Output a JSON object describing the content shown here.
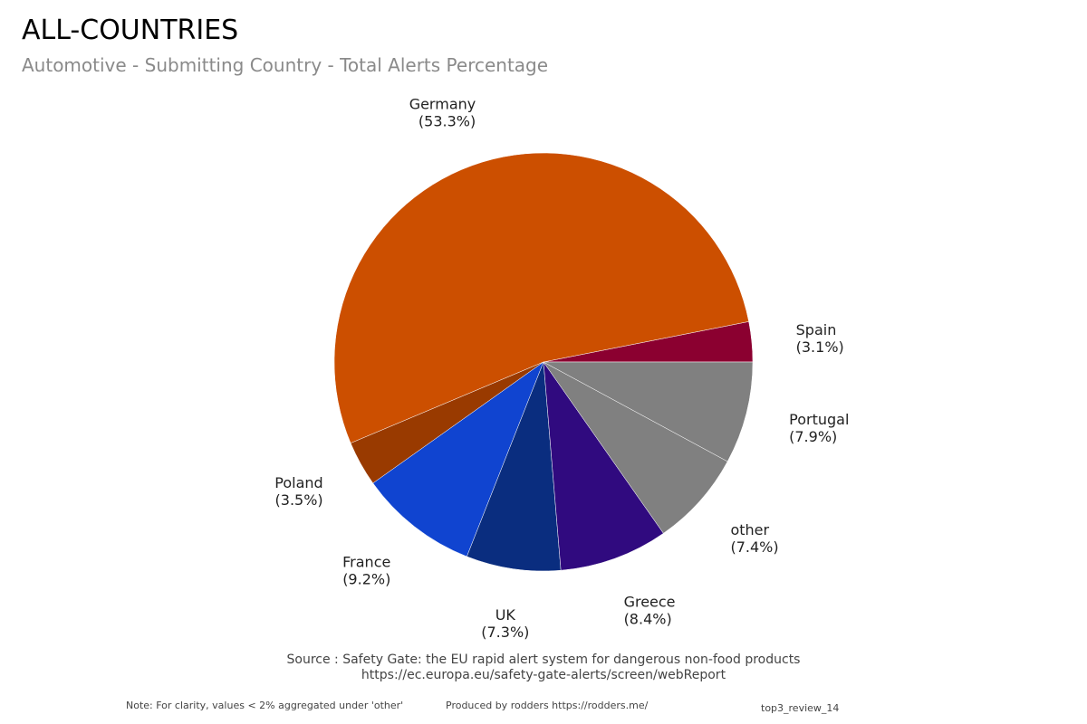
{
  "header": {
    "title": "ALL-COUNTRIES",
    "subtitle": "Automotive - Submitting Country - Total Alerts Percentage"
  },
  "chart_data": {
    "type": "pie",
    "title": "ALL-COUNTRIES",
    "subtitle": "Automotive - Submitting Country - Total Alerts Percentage",
    "unit": "%",
    "slices": [
      {
        "label": "Spain",
        "value": 3.1,
        "display": "(3.1%)",
        "color": "#8b0030"
      },
      {
        "label": "Germany",
        "value": 53.3,
        "display": "(53.3%)",
        "color": "#cc4f00"
      },
      {
        "label": "Poland",
        "value": 3.5,
        "display": "(3.5%)",
        "color": "#993a00"
      },
      {
        "label": "France",
        "value": 9.2,
        "display": "(9.2%)",
        "color": "#1044d0"
      },
      {
        "label": "UK",
        "value": 7.3,
        "display": "(7.3%)",
        "color": "#0a2d7f"
      },
      {
        "label": "Greece",
        "value": 8.4,
        "display": "(8.4%)",
        "color": "#300a7f"
      },
      {
        "label": "other",
        "value": 7.4,
        "display": "(7.4%)",
        "color": "#808080"
      },
      {
        "label": "Portugal",
        "value": 7.9,
        "display": "(7.9%)",
        "color": "#808080"
      }
    ]
  },
  "footer": {
    "source_line1": "Source : Safety Gate: the EU rapid alert system for dangerous non-food products",
    "source_line2": "https://ec.europa.eu/safety-gate-alerts/screen/webReport",
    "note": "Note: For clarity, values < 2% aggregated under 'other'",
    "produced_by": "Produced by rodders https://rodders.me/",
    "code": "top3_review_14"
  }
}
